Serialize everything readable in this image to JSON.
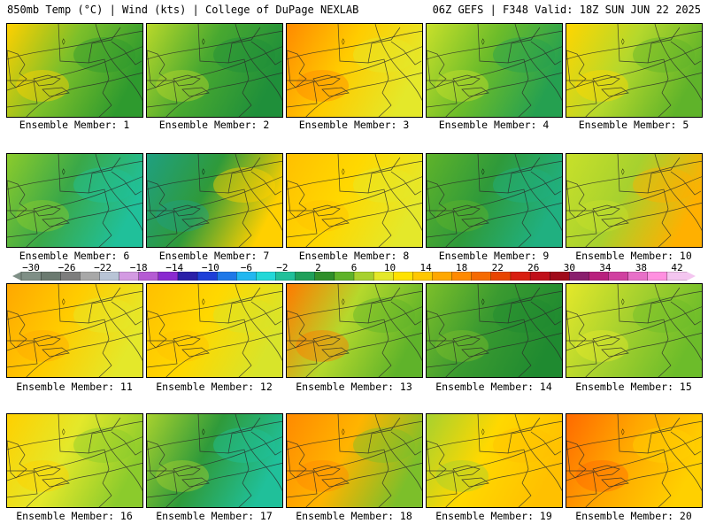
{
  "header": {
    "left": "850mb Temp (°C) | Wind (kts) | College of DuPage NEXLAB",
    "right": "06Z GEFS | F348 Valid: 18Z SUN JUN 22 2025"
  },
  "colorbar": {
    "ticks": [
      "−30",
      "−26",
      "−22",
      "−18",
      "−14",
      "−10",
      "−6",
      "−2",
      "2",
      "6",
      "10",
      "14",
      "18",
      "22",
      "26",
      "30",
      "34",
      "38",
      "42"
    ],
    "colors": [
      "#7f8f86",
      "#6b7a70",
      "#7d7d7d",
      "#a8a8a8",
      "#b8c4d6",
      "#d39ae2",
      "#b55bd3",
      "#8a2ad0",
      "#2a1fa8",
      "#1e3fd8",
      "#1e78e8",
      "#22b7f0",
      "#22d8d8",
      "#20c09a",
      "#1fa05a",
      "#2f8f2a",
      "#5fb32a",
      "#a7d12e",
      "#e4e82a",
      "#ffe200",
      "#ffc800",
      "#ffa800",
      "#ff8a00",
      "#f56a00",
      "#e84500",
      "#d81e10",
      "#c0101a",
      "#a00a1a",
      "#8a1f6e",
      "#b8207e",
      "#d040a0",
      "#e870c8",
      "#ff90e0",
      "#f4c6f0"
    ]
  },
  "panels": [
    {
      "label": "Ensemble Member: 1",
      "map": {
        "tint": "#7cbf2a",
        "west": "#ffd000",
        "east": "#2e9a2e"
      }
    },
    {
      "label": "Ensemble Member: 2",
      "map": {
        "tint": "#48a830",
        "west": "#b8d82a",
        "east": "#1f8f3a"
      }
    },
    {
      "label": "Ensemble Member: 3",
      "map": {
        "tint": "#ffcc00",
        "west": "#ff8a00",
        "east": "#e4e82a"
      }
    },
    {
      "label": "Ensemble Member: 4",
      "map": {
        "tint": "#6cbc2a",
        "west": "#c8e02a",
        "east": "#25a050"
      }
    },
    {
      "label": "Ensemble Member: 5",
      "map": {
        "tint": "#b5d82c",
        "west": "#ffd600",
        "east": "#5fb32a"
      }
    },
    {
      "label": "Ensemble Member: 6",
      "map": {
        "tint": "#3aa848",
        "west": "#8bcb2c",
        "east": "#20c09a"
      }
    },
    {
      "label": "Ensemble Member: 7",
      "map": {
        "tint": "#2f9a3a",
        "west": "#1fa080",
        "east": "#ffd000"
      }
    },
    {
      "label": "Ensemble Member: 8",
      "map": {
        "tint": "#ffd800",
        "west": "#ffc000",
        "east": "#e4e82a"
      }
    },
    {
      "label": "Ensemble Member: 9",
      "map": {
        "tint": "#2f9a3a",
        "west": "#5fb32a",
        "east": "#20b080"
      }
    },
    {
      "label": "Ensemble Member: 10",
      "map": {
        "tint": "#a7d12e",
        "west": "#c8e02a",
        "east": "#ffb000"
      }
    },
    {
      "label": "Ensemble Member: 11",
      "map": {
        "tint": "#ffcc00",
        "west": "#ffa800",
        "east": "#e4e82a"
      }
    },
    {
      "label": "Ensemble Member: 12",
      "map": {
        "tint": "#ffd800",
        "west": "#ffc000",
        "east": "#d8e42a"
      }
    },
    {
      "label": "Ensemble Member: 13",
      "map": {
        "tint": "#b5d82c",
        "west": "#ff7a00",
        "east": "#5fb32a"
      }
    },
    {
      "label": "Ensemble Member: 14",
      "map": {
        "tint": "#3a9a30",
        "west": "#7cbf2a",
        "east": "#1f8a30"
      }
    },
    {
      "label": "Ensemble Member: 15",
      "map": {
        "tint": "#a7d12e",
        "west": "#e4e82a",
        "east": "#6cbc2a"
      }
    },
    {
      "label": "Ensemble Member: 16",
      "map": {
        "tint": "#e4e82a",
        "west": "#ffd000",
        "east": "#8bcb2c"
      }
    },
    {
      "label": "Ensemble Member: 17",
      "map": {
        "tint": "#2f9a3a",
        "west": "#a7d12e",
        "east": "#20c09a"
      }
    },
    {
      "label": "Ensemble Member: 18",
      "map": {
        "tint": "#ffb400",
        "west": "#ff8a00",
        "east": "#7cbf2a"
      }
    },
    {
      "label": "Ensemble Member: 19",
      "map": {
        "tint": "#ffd800",
        "west": "#a7d12e",
        "east": "#ffc000"
      }
    },
    {
      "label": "Ensemble Member: 20",
      "map": {
        "tint": "#ffa800",
        "west": "#ff6a00",
        "east": "#ffd000"
      }
    }
  ]
}
